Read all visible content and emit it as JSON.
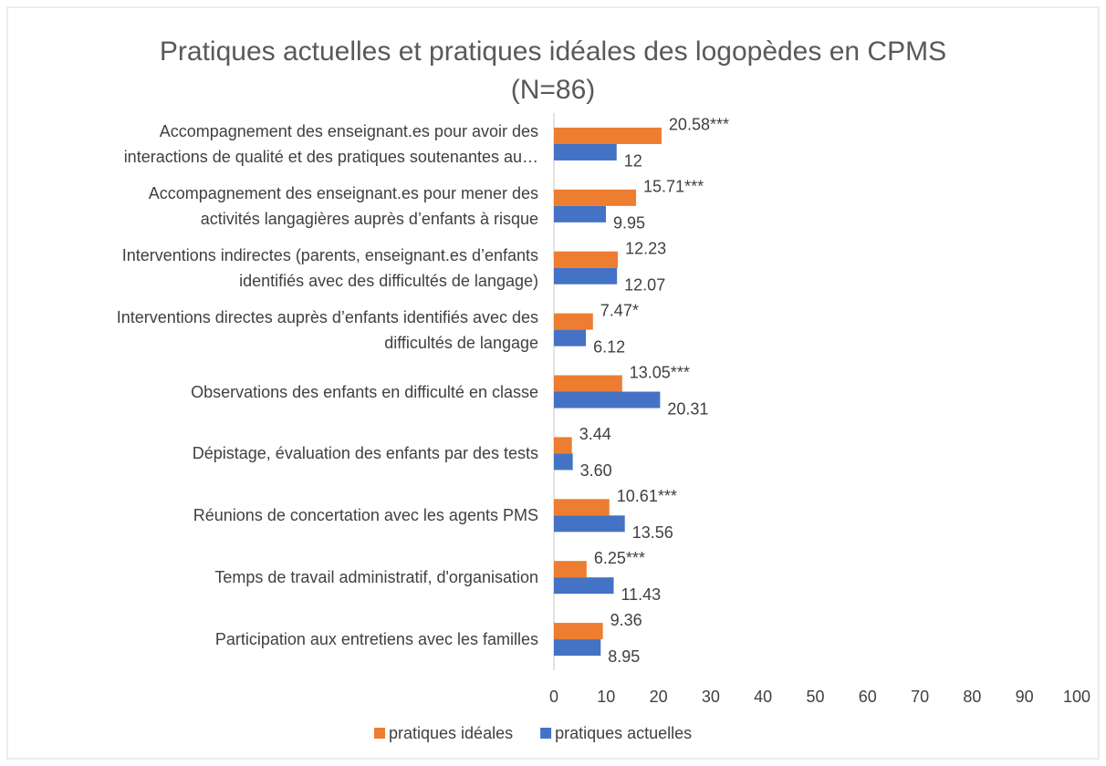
{
  "chart_data": {
    "type": "hbar",
    "title": "Pratiques actuelles et pratiques idéales des logopèdes en CPMS (N=86)",
    "categories": [
      "Accompagnement des enseignant.es pour avoir des\ninteractions de qualité et des pratiques soutenantes au…",
      "Accompagnement des enseignant.es pour mener des\nactivités langagières auprès d’enfants à risque",
      "Interventions indirectes (parents, enseignant.es d’enfants\nidentifiés avec des difficultés de langage)",
      "Interventions directes auprès d’enfants identifiés avec des\ndifficultés de langage",
      "Observations des enfants en difficulté en classe",
      "Dépistage, évaluation des enfants par des tests",
      "Réunions de concertation avec les agents PMS",
      "Temps de travail administratif, d'organisation",
      "Participation aux entretiens avec les familles"
    ],
    "series": [
      {
        "name": "pratiques idéales",
        "color": "#ED7D31",
        "values": [
          20.58,
          15.71,
          12.23,
          7.47,
          13.05,
          3.44,
          10.61,
          6.25,
          9.36
        ],
        "value_labels": [
          "20.58***",
          "15.71***",
          "12.23",
          "7.47*",
          "13.05***",
          "3.44",
          "10.61***",
          "6.25***",
          "9.36"
        ]
      },
      {
        "name": "pratiques actuelles",
        "color": "#4472C4",
        "values": [
          12,
          9.95,
          12.07,
          6.12,
          20.31,
          3.6,
          13.56,
          11.43,
          8.95
        ],
        "value_labels": [
          "12",
          "9.95",
          "12.07",
          "6.12",
          "20.31",
          "3.60",
          "13.56",
          "11.43",
          "8.95"
        ]
      }
    ],
    "xlim": [
      0,
      100
    ],
    "xticks": [
      0,
      10,
      20,
      30,
      40,
      50,
      60,
      70,
      80,
      90,
      100
    ],
    "legend": "bottom"
  }
}
